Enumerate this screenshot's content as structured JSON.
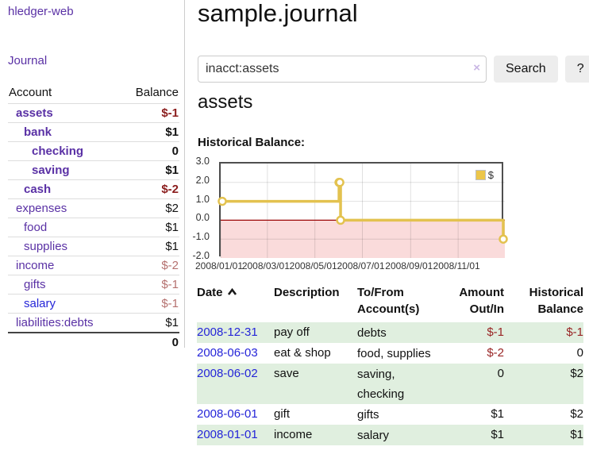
{
  "app": {
    "brand": "hledger-web"
  },
  "sidebar": {
    "journal_link": "Journal",
    "accounts": {
      "col_account": "Account",
      "col_balance": "Balance",
      "rows": [
        {
          "name": "assets",
          "balance": "$-1",
          "depth": 0,
          "in_account": true,
          "negative": true,
          "unvisited": false
        },
        {
          "name": "bank",
          "balance": "$1",
          "depth": 1,
          "in_account": true,
          "negative": false,
          "unvisited": false
        },
        {
          "name": "checking",
          "balance": "0",
          "depth": 2,
          "in_account": true,
          "negative": false,
          "unvisited": false
        },
        {
          "name": "saving",
          "balance": "$1",
          "depth": 2,
          "in_account": true,
          "negative": false,
          "unvisited": false
        },
        {
          "name": "cash",
          "balance": "$-2",
          "depth": 1,
          "in_account": true,
          "negative": true,
          "unvisited": false
        },
        {
          "name": "expenses",
          "balance": "$2",
          "depth": 0,
          "in_account": false,
          "negative": false,
          "unvisited": false
        },
        {
          "name": "food",
          "balance": "$1",
          "depth": 1,
          "in_account": false,
          "negative": false,
          "unvisited": false
        },
        {
          "name": "supplies",
          "balance": "$1",
          "depth": 1,
          "in_account": false,
          "negative": false,
          "unvisited": false
        },
        {
          "name": "income",
          "balance": "$-2",
          "depth": 0,
          "in_account": false,
          "negative": true,
          "unvisited": false
        },
        {
          "name": "gifts",
          "balance": "$-1",
          "depth": 1,
          "in_account": false,
          "negative": true,
          "unvisited": false
        },
        {
          "name": "salary",
          "balance": "$-1",
          "depth": 1,
          "in_account": false,
          "negative": true,
          "unvisited": true
        },
        {
          "name": "liabilities:debts",
          "balance": "$1",
          "depth": 0,
          "in_account": false,
          "negative": false,
          "unvisited": false
        }
      ],
      "total": "0"
    }
  },
  "header": {
    "title": "sample.journal"
  },
  "search": {
    "value": "inacct:assets",
    "clear_icon": "×",
    "search_label": "Search",
    "help_label": "?"
  },
  "account_page": {
    "heading": "assets",
    "chart_label": "Historical Balance:"
  },
  "chart_data": {
    "type": "line",
    "style": "step-after",
    "title": "Historical Balance:",
    "legend": [
      {
        "label": "$",
        "color": "#ecc64a"
      }
    ],
    "legend_position": "top-right",
    "x_range": [
      "2008-01-01",
      "2008-12-31"
    ],
    "ylim": [
      -2,
      3
    ],
    "y_tick_labels": [
      "3.0",
      "2.0",
      "1.0",
      "0.0",
      "-1.0",
      "-2.0"
    ],
    "x_tick_labels": [
      "2008/01/01",
      "2008/03/01",
      "2008/05/01",
      "2008/07/01",
      "2008/09/01",
      "2008/11/01"
    ],
    "series": [
      {
        "name": "$",
        "points": [
          {
            "date": "2008-01-01",
            "value": 1
          },
          {
            "date": "2008-06-01",
            "value": 2
          },
          {
            "date": "2008-06-02",
            "value": 2
          },
          {
            "date": "2008-06-03",
            "value": 0
          },
          {
            "date": "2008-12-31",
            "value": -1
          }
        ]
      }
    ],
    "grid": true,
    "negative_region_shaded": true,
    "colors": {
      "line": "#e3c24f",
      "marker_fill": "#ffffff",
      "zero_line": "#9c0606",
      "negative_fill": "#fadbdb",
      "gridline": "rgba(0,0,0,0.12)"
    }
  },
  "register": {
    "headers": {
      "date": "Date",
      "description": "Description",
      "account": "To/From Account(s)",
      "amount": "Amount Out/In",
      "balance": "Historical Balance"
    },
    "sort": "date-ascending",
    "rows": [
      {
        "date": "2008-12-31",
        "description": "pay off",
        "account": "debts",
        "amount": "$-1",
        "balance": "$-1",
        "amount_negative": true,
        "balance_negative": true
      },
      {
        "date": "2008-06-03",
        "description": "eat & shop",
        "account": "food, supplies",
        "amount": "$-2",
        "balance": "0",
        "amount_negative": true,
        "balance_negative": false
      },
      {
        "date": "2008-06-02",
        "description": "save",
        "account": "saving, checking",
        "amount": "0",
        "balance": "$2",
        "amount_negative": false,
        "balance_negative": false
      },
      {
        "date": "2008-06-01",
        "description": "gift",
        "account": "gifts",
        "amount": "$1",
        "balance": "$2",
        "amount_negative": false,
        "balance_negative": false
      },
      {
        "date": "2008-01-01",
        "description": "income",
        "account": "salary",
        "amount": "$1",
        "balance": "$1",
        "amount_negative": false,
        "balance_negative": false
      }
    ]
  }
}
